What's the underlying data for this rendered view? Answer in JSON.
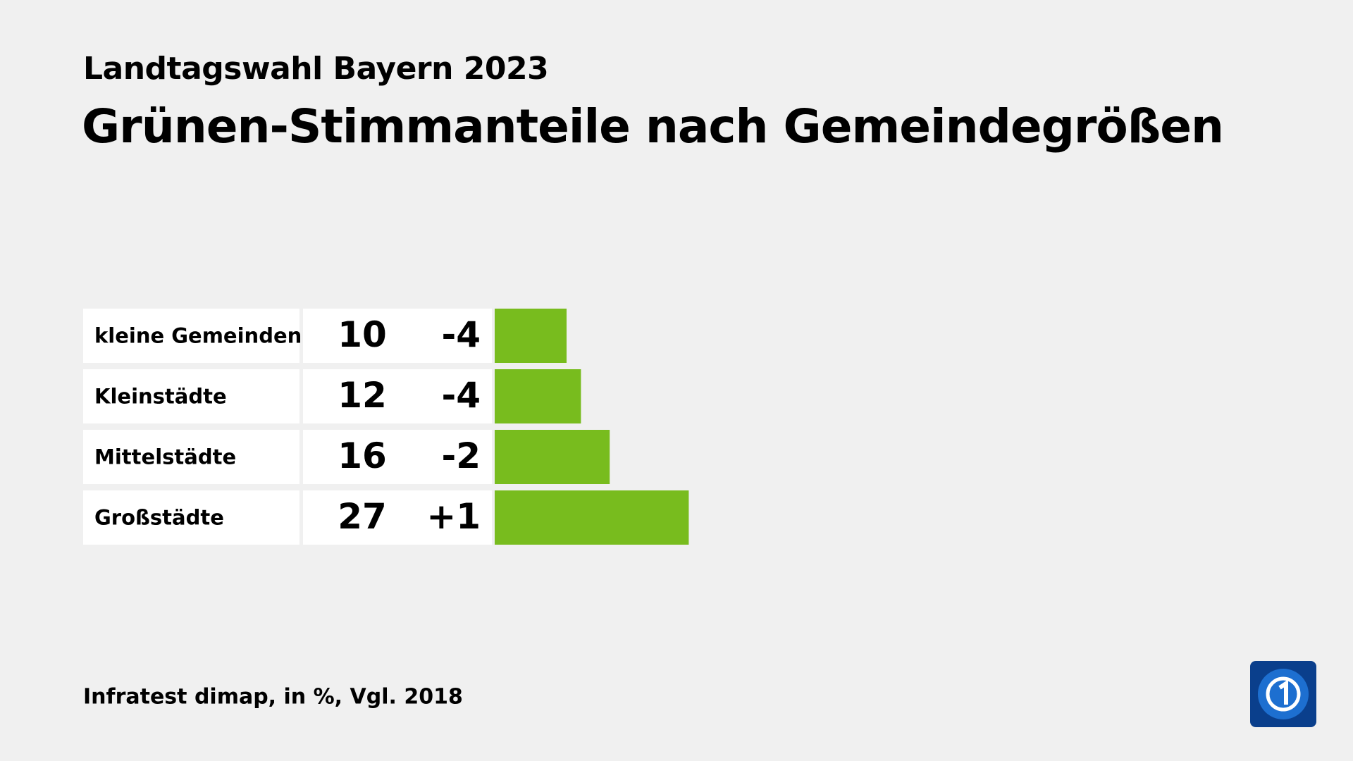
{
  "chart_data": {
    "type": "bar",
    "orientation": "horizontal",
    "subtitle": "Landtagswahl Bayern 2023",
    "title": "Grünen-Stimmanteile nach Gemeindegrößen",
    "categories": [
      "kleine Gemeinden",
      "Kleinstädte",
      "Mittelstädte",
      "Großstädte"
    ],
    "values": [
      10,
      12,
      16,
      27
    ],
    "color": "#78bc1e",
    "changes": {
      "values": [
        -4,
        -4,
        -2,
        1
      ],
      "value_labels": [
        "-4",
        "-4",
        "-2",
        "+1"
      ]
    },
    "source": "Infratest dimap, in %, Vgl. 2018"
  }
}
